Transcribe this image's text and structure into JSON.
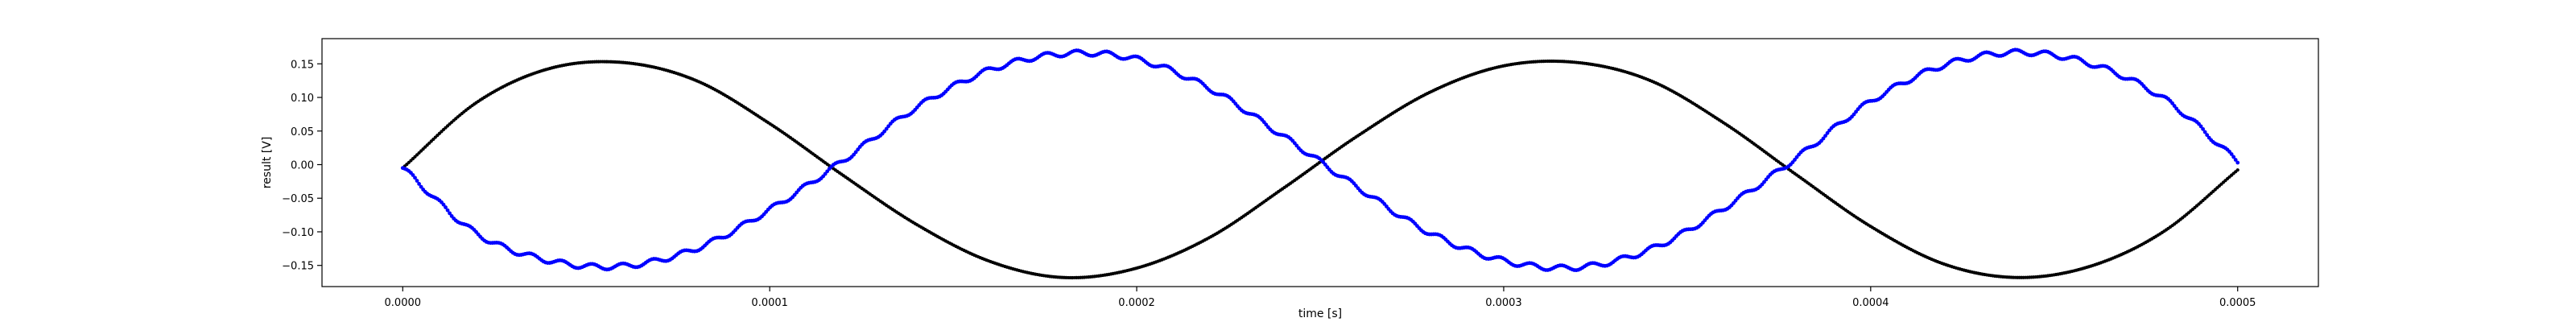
{
  "chart_data": {
    "type": "scatter",
    "xlabel": "time [s]",
    "ylabel": "result [V]",
    "xlim": [
      -2.2e-05,
      0.000522
    ],
    "ylim": [
      -0.1815,
      0.1875
    ],
    "x_ticks": [
      0.0,
      0.0001,
      0.0002,
      0.0003,
      0.0004,
      0.0005
    ],
    "x_tick_labels": [
      "0.0000",
      "0.0001",
      "0.0002",
      "0.0003",
      "0.0004",
      "0.0005"
    ],
    "y_ticks": [
      -0.15,
      -0.1,
      -0.05,
      0.0,
      0.05,
      0.1,
      0.15
    ],
    "y_tick_labels": [
      "−0.15",
      "−0.10",
      "−0.05",
      "0.00",
      "0.05",
      "0.10",
      "0.15"
    ],
    "grid": false,
    "legend": false,
    "series": [
      {
        "color": "#000000",
        "marker": "dot",
        "x": [
          0.0,
          2e-05,
          4e-05,
          6e-05,
          8e-05,
          0.0001,
          0.00012,
          0.00014,
          0.00016,
          0.00018,
          0.0002,
          0.00022,
          0.00024,
          0.00026,
          0.00028,
          0.0003,
          0.00032,
          0.00034,
          0.00036,
          0.00038,
          0.0004,
          0.00042,
          0.00044,
          0.00046,
          0.00048,
          0.0005
        ],
        "y": [
          -0.005,
          0.092,
          0.143,
          0.152,
          0.125,
          0.061,
          -0.016,
          -0.089,
          -0.144,
          -0.168,
          -0.154,
          -0.108,
          -0.035,
          0.042,
          0.108,
          0.147,
          0.152,
          0.125,
          0.062,
          -0.016,
          -0.092,
          -0.148,
          -0.168,
          -0.151,
          -0.099,
          -0.008
        ]
      },
      {
        "color": "#0000ff",
        "marker": "dot",
        "x": [
          0.0,
          2e-05,
          4e-05,
          6e-05,
          8e-05,
          0.0001,
          0.00012,
          0.00014,
          0.00016,
          0.00018,
          0.0002,
          0.00022,
          0.00024,
          0.00026,
          0.00028,
          0.0003,
          0.00032,
          0.00034,
          0.00036,
          0.00038,
          0.0004,
          0.00042,
          0.00044,
          0.00046,
          0.00048,
          0.0005
        ],
        "y": [
          -0.005,
          -0.102,
          -0.143,
          -0.151,
          -0.125,
          -0.067,
          0.006,
          0.085,
          0.141,
          0.165,
          0.157,
          0.113,
          0.042,
          -0.033,
          -0.102,
          -0.143,
          -0.153,
          -0.126,
          -0.065,
          0.011,
          0.094,
          0.148,
          0.167,
          0.15,
          0.098,
          0.005
        ]
      }
    ]
  }
}
